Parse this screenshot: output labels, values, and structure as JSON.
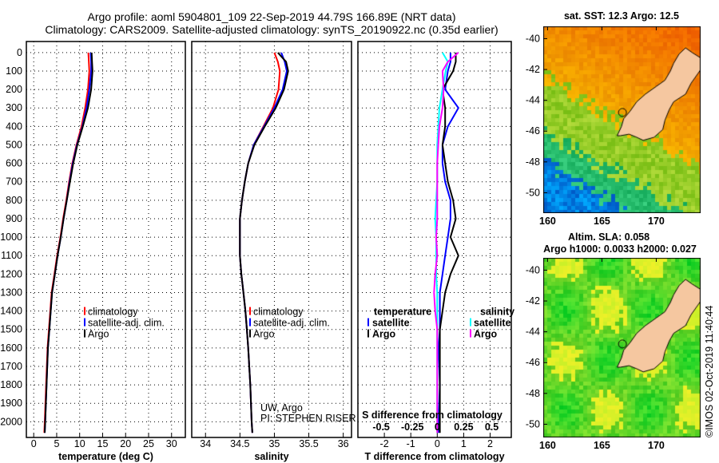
{
  "title": {
    "line1": "Argo profile: aoml 5904801_109 22-Sep-2019 44.79S 166.89E (NRT data)",
    "line2": "Climatology: CARS2009. Satellite-adjusted climatology: synTS_20190922.nc (0.35d earlier)"
  },
  "colors": {
    "climatology": "#ff0000",
    "satellite": "#0000ff",
    "argo": "#000000",
    "sal_satellite": "#00ffff",
    "sal_argo": "#ff00ff",
    "land": "#f5c7a0"
  },
  "chart_data": [
    {
      "type": "line",
      "id": "temperature",
      "xlabel": "temperature (deg C)",
      "ylabel": "",
      "xlim": [
        -1.6,
        33
      ],
      "ylim": [
        2085,
        -60
      ],
      "xticks": [
        "0",
        "5",
        "10",
        "15",
        "20",
        "25",
        "30"
      ],
      "xtick_values": [
        0,
        5,
        10,
        15,
        20,
        25,
        30
      ],
      "yticks": [
        "0",
        "100",
        "200",
        "300",
        "400",
        "500",
        "600",
        "700",
        "800",
        "900",
        "1000",
        "1100",
        "1200",
        "1300",
        "1400",
        "1500",
        "1600",
        "1700",
        "1800",
        "1900",
        "2000"
      ],
      "depth": [
        0,
        50,
        100,
        200,
        300,
        400,
        500,
        600,
        700,
        800,
        900,
        1000,
        1100,
        1200,
        1300,
        1400,
        1500,
        1600,
        1800,
        2000,
        2060
      ],
      "legend": [
        "climatology",
        "satellite-adj. clim.",
        "Argo"
      ],
      "series": [
        {
          "name": "climatology",
          "values": [
            11.9,
            12.0,
            12.1,
            11.8,
            11.2,
            10.4,
            9.3,
            8.4,
            7.7,
            7.1,
            6.4,
            5.8,
            5.1,
            4.5,
            3.9,
            3.6,
            3.3,
            3.0,
            2.7,
            2.4,
            2.3
          ]
        },
        {
          "name": "satellite-adj. clim.",
          "values": [
            12.4,
            12.5,
            12.5,
            12.1,
            11.5,
            10.6,
            9.4,
            8.5,
            7.8,
            7.2,
            6.5,
            5.9,
            5.2,
            4.6,
            4.0,
            3.7,
            3.4,
            3.1,
            2.8,
            2.5,
            2.4
          ]
        },
        {
          "name": "Argo",
          "values": [
            12.6,
            12.7,
            12.8,
            12.5,
            11.8,
            10.7,
            9.5,
            8.6,
            7.9,
            7.2,
            6.5,
            5.9,
            5.2,
            4.6,
            4.0,
            3.7,
            3.4,
            3.1,
            2.8,
            2.5,
            2.4
          ]
        }
      ]
    },
    {
      "type": "line",
      "id": "salinity",
      "xlabel": "salinity",
      "xlim": [
        33.8,
        36.12
      ],
      "ylim": [
        2085,
        -60
      ],
      "xticks": [
        "34",
        "34.5",
        "35",
        "35.5",
        "36"
      ],
      "xtick_values": [
        34,
        34.5,
        35,
        35.5,
        36
      ],
      "depth": [
        0,
        50,
        100,
        200,
        300,
        400,
        500,
        600,
        700,
        800,
        900,
        1000,
        1100,
        1200,
        1300,
        1400,
        1500,
        1600,
        1800,
        2000,
        2060
      ],
      "legend": [
        "climatology",
        "satellite-adj. clim.",
        "Argo"
      ],
      "annotation": [
        "UW, Argo",
        "PI: STEPHEN RISER"
      ],
      "series": [
        {
          "name": "climatology",
          "values": [
            35.0,
            35.05,
            35.08,
            35.06,
            34.98,
            34.84,
            34.7,
            34.62,
            34.57,
            34.53,
            34.5,
            34.5,
            34.5,
            34.52,
            34.55,
            34.58,
            34.6,
            34.62,
            34.65,
            34.67,
            34.68
          ]
        },
        {
          "name": "satellite-adj. clim.",
          "values": [
            35.1,
            35.15,
            35.18,
            35.12,
            35.0,
            34.85,
            34.7,
            34.62,
            34.57,
            34.53,
            34.5,
            34.5,
            34.5,
            34.52,
            34.55,
            34.58,
            34.6,
            34.62,
            34.65,
            34.67,
            34.68
          ]
        },
        {
          "name": "Argo",
          "values": [
            35.05,
            35.17,
            35.2,
            35.14,
            35.02,
            34.86,
            34.71,
            34.62,
            34.57,
            34.53,
            34.5,
            34.5,
            34.5,
            34.52,
            34.55,
            34.58,
            34.6,
            34.62,
            34.65,
            34.67,
            34.68
          ]
        }
      ]
    },
    {
      "type": "line",
      "id": "difference",
      "xlabel": "T difference from climatology",
      "x2label": "S difference from climatology",
      "xlim": [
        -3.0,
        2.8
      ],
      "ylim": [
        2085,
        -60
      ],
      "xticks": [
        "-2",
        "-1",
        "0",
        "1",
        "2"
      ],
      "xtick_values": [
        -2,
        -1,
        0,
        1,
        2
      ],
      "x2ticks": [
        "-0.5",
        "-0.25",
        "0",
        "0.25",
        "0.5"
      ],
      "x2tick_values": [
        -0.5,
        -0.25,
        0,
        0.25,
        0.5
      ],
      "legend_temperature": {
        "title": "temperature",
        "items": [
          "satellite",
          "Argo"
        ]
      },
      "legend_salinity": {
        "title": "salinity",
        "items": [
          "satellite",
          "Argo"
        ]
      },
      "depth": [
        0,
        50,
        100,
        200,
        300,
        400,
        500,
        600,
        700,
        800,
        900,
        1000,
        1100,
        1200,
        1300,
        1400,
        1500,
        1600,
        1800,
        2000,
        2060
      ],
      "series": [
        {
          "name": "T satellite",
          "values": [
            0.5,
            0.5,
            0.4,
            0.3,
            0.8,
            0.4,
            0.2,
            0.2,
            0.3,
            0.5,
            0.5,
            0.4,
            0.3,
            0.2,
            0.1,
            0.1,
            0.1,
            0.05,
            0.1,
            0.05,
            0.05
          ]
        },
        {
          "name": "T Argo",
          "values": [
            0.7,
            0.7,
            0.6,
            0.2,
            0.3,
            0.3,
            0.2,
            0.3,
            0.4,
            0.6,
            0.7,
            0.5,
            0.8,
            0.5,
            0.3,
            0.2,
            0.1,
            0.1,
            0.1,
            0.1,
            0.1
          ]
        },
        {
          "name": "S satellite",
          "values": [
            0.05,
            0.1,
            0.08,
            0.05,
            0.02,
            0.01,
            0.0,
            0.0,
            0.0,
            -0.01,
            -0.02,
            -0.01,
            -0.01,
            -0.01,
            0.0,
            0.0,
            0.0,
            0.0,
            0.0,
            0.0,
            0.0
          ]
        },
        {
          "name": "S Argo",
          "values": [
            0.2,
            0.1,
            0.05,
            0.06,
            0.05,
            0.02,
            0.01,
            0.0,
            0.0,
            0.0,
            0.0,
            -0.01,
            0.0,
            -0.02,
            -0.03,
            -0.02,
            0.0,
            0.0,
            0.0,
            0.0,
            0.0
          ]
        }
      ]
    }
  ],
  "maps": {
    "sst": {
      "title": "sat. SST: 12.3 Argo: 12.5"
    },
    "sla": {
      "title1": "Altim. SLA: 0.058",
      "title2": "Argo h1000: 0.0033 h2000: 0.027"
    },
    "lat_ticks": [
      "-40",
      "-42",
      "-44",
      "-46",
      "-48",
      "-50"
    ],
    "lon_ticks": [
      "160",
      "165",
      "170"
    ],
    "profile_location": {
      "lat": -44.79,
      "lon": 166.89
    }
  },
  "credit": "©IMOS 02-Oct-2019 11:40:44"
}
